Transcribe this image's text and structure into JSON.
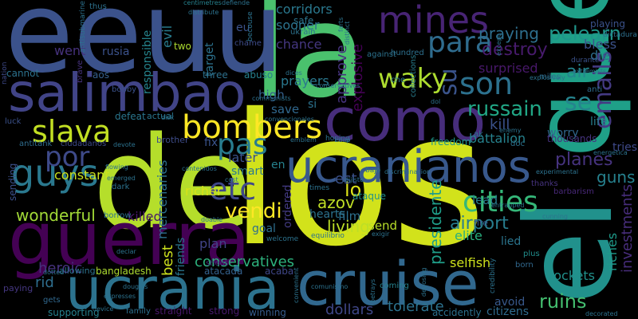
{
  "words": [
    {
      "text": "los",
      "color": "#d2e21b"
    },
    {
      "text": "de",
      "color": "#b5de2b"
    },
    {
      "text": "la",
      "color": "#4ac16d"
    },
    {
      "text": "el",
      "color": "#21918c"
    },
    {
      "text": "que",
      "color": "#1fa088"
    },
    {
      "text": "eeuu",
      "color": "#3b528b"
    },
    {
      "text": "guerra",
      "color": "#440154"
    },
    {
      "text": "ucrania",
      "color": "#2c728e"
    },
    {
      "text": "cruise",
      "color": "#31688e"
    },
    {
      "text": "salimbao",
      "color": "#414487"
    },
    {
      "text": "como",
      "color": "#472d7b"
    },
    {
      "text": "ucranianos",
      "color": "#38588c"
    },
    {
      "text": "mines",
      "color": "#482475"
    },
    {
      "text": "bombers",
      "color": "#fde725"
    },
    {
      "text": "slava",
      "color": "#c2df23"
    },
    {
      "text": "guys",
      "color": "#2a788e"
    },
    {
      "text": "por",
      "color": "#3e4a89"
    },
    {
      "text": "pas",
      "color": "#287c8e"
    },
    {
      "text": "etc",
      "color": "#3f4889"
    },
    {
      "text": "para",
      "color": "#2f6c8e"
    },
    {
      "text": "son",
      "color": "#2c718e"
    },
    {
      "text": "se",
      "color": "#25848e"
    },
    {
      "text": "su",
      "color": "#3a538b"
    },
    {
      "text": "cities",
      "color": "#35b779"
    },
    {
      "text": "emails",
      "color": "#443a83"
    },
    {
      "text": "waky",
      "color": "#addc30"
    },
    {
      "text": "vendi",
      "color": "#fde725"
    },
    {
      "text": "russain",
      "color": "#21a685"
    },
    {
      "text": "destroy",
      "color": "#481b6d"
    },
    {
      "text": "pelearn",
      "color": "#1f968b"
    },
    {
      "text": "praying",
      "color": "#2e6f8e"
    },
    {
      "text": "wonderful",
      "color": "#a2da37"
    },
    {
      "text": "ruins",
      "color": "#44bf70"
    },
    {
      "text": "airport",
      "color": "#287d8e"
    },
    {
      "text": "conservatives",
      "color": "#2db27d"
    },
    {
      "text": "living",
      "color": "#bddf26"
    },
    {
      "text": "richer",
      "color": "#d8e219"
    },
    {
      "text": "kill",
      "color": "#3b528b"
    },
    {
      "text": "air",
      "color": "#24868e"
    },
    {
      "text": "planes",
      "color": "#46337f"
    },
    {
      "text": "guns",
      "color": "#26818e"
    },
    {
      "text": "lo",
      "color": "#dde318"
    },
    {
      "text": "azov",
      "color": "#c0df25"
    },
    {
      "text": "constant",
      "color": "#cae11f"
    },
    {
      "text": "later",
      "color": "#3b528b"
    },
    {
      "text": "killed",
      "color": "#48186a"
    },
    {
      "text": "heroic",
      "color": "#46327e"
    },
    {
      "text": "rid",
      "color": "#2e6e8e"
    },
    {
      "text": "dollars",
      "color": "#3f4788"
    },
    {
      "text": "tolerate",
      "color": "#2c728e"
    },
    {
      "text": "selfish",
      "color": "#cde11d"
    },
    {
      "text": "rockets",
      "color": "#21918c"
    },
    {
      "text": "elite",
      "color": "#29af7f"
    },
    {
      "text": "presidente",
      "color": "#1f9e89"
    },
    {
      "text": "investments",
      "color": "#472d7b"
    },
    {
      "text": "riches",
      "color": "#1e9b8a"
    },
    {
      "text": "best",
      "color": "#cde11d"
    },
    {
      "text": "friends",
      "color": "#2a768e"
    },
    {
      "text": "mercenaries",
      "color": "#2d708e"
    },
    {
      "text": "approve",
      "color": "#46327e"
    },
    {
      "text": "explosive",
      "color": "#440154"
    },
    {
      "text": "prayers",
      "color": "#2a788e"
    },
    {
      "text": "high",
      "color": "#34618d"
    },
    {
      "text": "save",
      "color": "#31688e"
    },
    {
      "text": "chance",
      "color": "#453781"
    },
    {
      "text": "sooner",
      "color": "#2c738e"
    },
    {
      "text": "corridors",
      "color": "#2a788e"
    },
    {
      "text": "safe",
      "color": "#2b748e"
    },
    {
      "text": "target",
      "color": "#2c728e"
    },
    {
      "text": "evil",
      "color": "#287c8e"
    },
    {
      "text": "responsible",
      "color": "#25858e"
    },
    {
      "text": "rusia",
      "color": "#3b528b"
    },
    {
      "text": "went",
      "color": "#46327e"
    },
    {
      "text": "bless",
      "color": "#3b528b"
    },
    {
      "text": "die",
      "color": "#2e6e8e"
    },
    {
      "text": "surprised",
      "color": "#48186a"
    },
    {
      "text": "hundred",
      "color": "#2d708e"
    },
    {
      "text": "battalion",
      "color": "#26828e"
    },
    {
      "text": "worry",
      "color": "#31688e"
    },
    {
      "text": "life",
      "color": "#27808e"
    },
    {
      "text": "tries",
      "color": "#3e4989"
    },
    {
      "text": "thousands",
      "color": "#46337f"
    },
    {
      "text": "lead",
      "color": "#287d8e"
    },
    {
      "text": "film",
      "color": "#2d708e"
    },
    {
      "text": "send",
      "color": "#b8de29"
    },
    {
      "text": "hearts",
      "color": "#2c728e"
    },
    {
      "text": "ordered",
      "color": "#443b84"
    },
    {
      "text": "goal",
      "color": "#2e6f8e"
    },
    {
      "text": "plan",
      "color": "#414487"
    },
    {
      "text": "fix",
      "color": "#3a548c"
    },
    {
      "text": "smart",
      "color": "#2a788e"
    },
    {
      "text": "en",
      "color": "#26828e"
    },
    {
      "text": "est",
      "color": "#3b528b"
    },
    {
      "text": "lied",
      "color": "#2b758e"
    },
    {
      "text": "plus",
      "color": "#218e8d"
    },
    {
      "text": "born",
      "color": "#31688e"
    },
    {
      "text": "avoid",
      "color": "#38598c"
    },
    {
      "text": "citizens",
      "color": "#2f6b8e"
    },
    {
      "text": "accidently",
      "color": "#2c718e"
    },
    {
      "text": "supporting",
      "color": "#26818e"
    },
    {
      "text": "family",
      "color": "#2d708e"
    },
    {
      "text": "straight",
      "color": "#48186a"
    },
    {
      "text": "strong",
      "color": "#481a6c"
    },
    {
      "text": "winning",
      "color": "#365c8d"
    },
    {
      "text": "coming",
      "color": "#26828e"
    },
    {
      "text": "bangladesh",
      "color": "#addc30"
    },
    {
      "text": "allowing",
      "color": "#2c728e"
    },
    {
      "text": "atacada",
      "color": "#34618d"
    },
    {
      "text": "acaba",
      "color": "#3f4788"
    },
    {
      "text": "shoot",
      "color": "#46307e"
    },
    {
      "text": "paying",
      "color": "#453781"
    },
    {
      "text": "gets",
      "color": "#31688e"
    },
    {
      "text": "ataque",
      "color": "#21918c"
    },
    {
      "text": "fire",
      "color": "#39568c"
    },
    {
      "text": "freedom",
      "color": "#1f988b"
    },
    {
      "text": "sending",
      "color": "#3c508b"
    },
    {
      "text": "brother",
      "color": "#3e4c8a"
    },
    {
      "text": "defeat",
      "color": "#2a768e"
    },
    {
      "text": "actual",
      "color": "#2a768e"
    },
    {
      "text": "bobby",
      "color": "#3b528b"
    },
    {
      "text": "aos",
      "color": "#35608d"
    },
    {
      "text": "cannot",
      "color": "#2c728e"
    },
    {
      "text": "luck",
      "color": "#3b528b"
    },
    {
      "text": "antitank",
      "color": "#2f6c8e"
    },
    {
      "text": "ciudadanos",
      "color": "#3e4a89"
    },
    {
      "text": "brave",
      "color": "#46327e"
    },
    {
      "text": "three",
      "color": "#2d718e"
    },
    {
      "text": "abuso",
      "color": "#26818e"
    },
    {
      "text": "two",
      "color": "#addc30"
    },
    {
      "text": "eu",
      "color": "#3b528b"
    },
    {
      "text": "si",
      "color": "#2c728e"
    },
    {
      "text": "ak",
      "color": "#2c718e"
    },
    {
      "text": "thanks",
      "color": "#46337f"
    },
    {
      "text": "barbarism",
      "color": "#482878"
    },
    {
      "text": "anti",
      "color": "#2f6c8e"
    },
    {
      "text": "miles",
      "color": "#2f6c8e"
    },
    {
      "text": "durante",
      "color": "#3b528b"
    },
    {
      "text": "playing",
      "color": "#3b528b"
    },
    {
      "text": "dictadura",
      "color": "#2d708e"
    },
    {
      "text": "thus",
      "color": "#2d718e"
    },
    {
      "text": "ukrain",
      "color": "#2c728e"
    },
    {
      "text": "chame",
      "color": "#3e4c8a"
    },
    {
      "text": "dark",
      "color": "#2c728e"
    },
    {
      "text": "borrow",
      "color": "#2c728e"
    },
    {
      "text": "che",
      "color": "#2a788e"
    },
    {
      "text": "against",
      "color": "#2c728e"
    },
    {
      "text": "collections",
      "color": "#287d8e"
    },
    {
      "text": "hoping",
      "color": "#2c728e"
    },
    {
      "text": "nation",
      "color": "#3e4a89"
    },
    {
      "text": "antisubmarine",
      "color": "#2c728e"
    },
    {
      "text": "centimetres",
      "color": "#26828e"
    },
    {
      "text": "conservatives",
      "color": "#2c728e"
    },
    {
      "text": "dices",
      "color": "#2c728e"
    },
    {
      "text": "emblem",
      "color": "#2c728e"
    },
    {
      "text": "comunismo",
      "color": "#2c728e"
    },
    {
      "text": "device",
      "color": "#2c728e"
    },
    {
      "text": "expresses",
      "color": "#2c728e"
    },
    {
      "text": "emerged",
      "color": "#2c728e"
    },
    {
      "text": "flowing",
      "color": "#2c728e"
    },
    {
      "text": "douglas",
      "color": "#2c728e"
    },
    {
      "text": "dotted",
      "color": "#2c728e"
    },
    {
      "text": "disk",
      "color": "#2c728e"
    },
    {
      "text": "devote",
      "color": "#2c728e"
    },
    {
      "text": "declar",
      "color": "#2c728e"
    },
    {
      "text": "dijiste",
      "color": "#2c728e"
    },
    {
      "text": "exigir",
      "color": "#2c728e"
    },
    {
      "text": "equilibrio",
      "color": "#2c728e"
    },
    {
      "text": "welcome",
      "color": "#2c728e"
    },
    {
      "text": "times",
      "color": "#2c728e"
    },
    {
      "text": "bajo",
      "color": "#2c728e"
    },
    {
      "text": "betrays",
      "color": "#2c728e"
    },
    {
      "text": "deposing",
      "color": "#2c728e"
    },
    {
      "text": "except",
      "color": "#2c728e"
    },
    {
      "text": "explosively",
      "color": "#2c728e"
    },
    {
      "text": "extremists",
      "color": "#2c728e"
    },
    {
      "text": "energetica",
      "color": "#2c728e"
    },
    {
      "text": "experimental",
      "color": "#2c728e"
    },
    {
      "text": "cunning",
      "color": "#2c728e"
    },
    {
      "text": "entrapped",
      "color": "#2c728e"
    },
    {
      "text": "enemy",
      "color": "#2c728e"
    },
    {
      "text": "discriminacion",
      "color": "#2c728e"
    },
    {
      "text": "decorated",
      "color": "#2c728e"
    },
    {
      "text": "credibility",
      "color": "#2c728e"
    },
    {
      "text": "communists",
      "color": "#2c728e"
    },
    {
      "text": "dol",
      "color": "#2c728e"
    },
    {
      "text": "doc",
      "color": "#2c728e"
    },
    {
      "text": "becouse",
      "color": "#2c728e"
    },
    {
      "text": "coup",
      "color": "#2c728e"
    },
    {
      "text": "defiende",
      "color": "#2c728e"
    },
    {
      "text": "distribute",
      "color": "#2c728e"
    },
    {
      "text": "farts",
      "color": "#2c728e"
    },
    {
      "text": "distinct",
      "color": "#2c728e"
    },
    {
      "text": "contenidos",
      "color": "#2c728e"
    },
    {
      "text": "convenient",
      "color": "#2c728e"
    },
    {
      "text": "convencionales",
      "color": "#2c728e"
    },
    {
      "text": "cost",
      "color": "#2c728e"
    },
    {
      "text": "doable",
      "color": "#2c728e"
    },
    {
      "text": "colectivo",
      "color": "#2c728e"
    }
  ]
}
